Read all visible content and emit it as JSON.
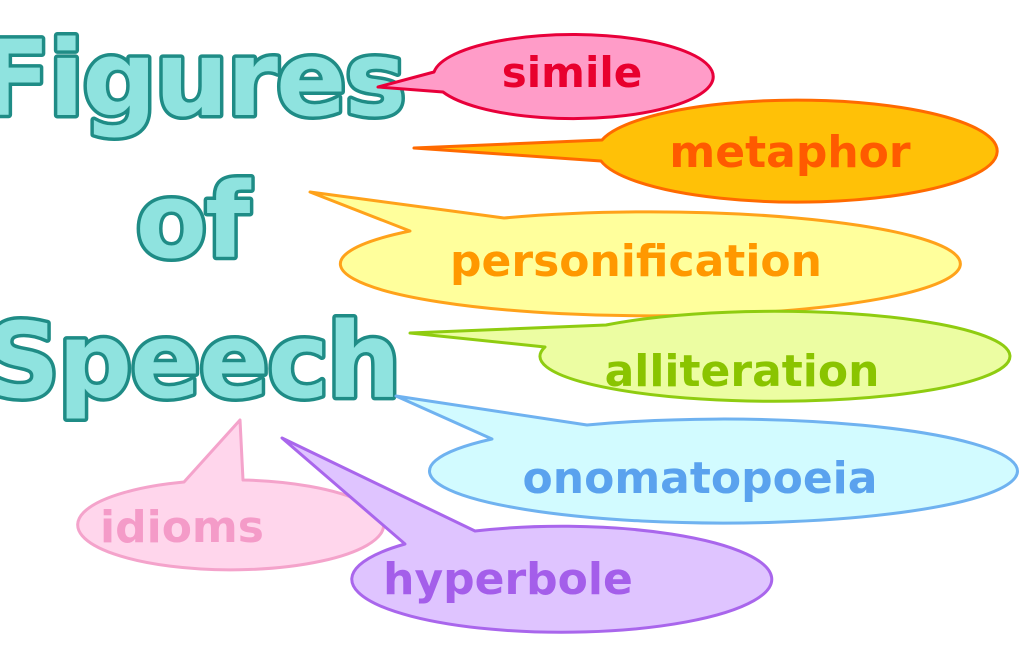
{
  "title": {
    "line1": "Figures",
    "line2": "of",
    "line3": "Speech",
    "fill_color": "#8fe3df",
    "outline_color": "#1f8c86"
  },
  "bubbles": [
    {
      "label": "simile",
      "fill": "#ff9cc8",
      "stroke": "#e8003a",
      "text_color": "#e8002e"
    },
    {
      "label": "metaphor",
      "fill": "#ffc107",
      "stroke": "#ff6a00",
      "text_color": "#ff5a00"
    },
    {
      "label": "personification",
      "fill": "#ffff9c",
      "stroke": "#ffa21a",
      "text_color": "#ff9800"
    },
    {
      "label": "alliteration",
      "fill": "#ecfda2",
      "stroke": "#8fcc10",
      "text_color": "#8ac400"
    },
    {
      "label": "onomatopoeia",
      "fill": "#d2fbff",
      "stroke": "#6fb2f0",
      "text_color": "#5aa2ee"
    },
    {
      "label": "idioms",
      "fill": "#ffd6ec",
      "stroke": "#f4a3cb",
      "text_color": "#f49bc8"
    },
    {
      "label": "hyperbole",
      "fill": "#dfc4ff",
      "stroke": "#a966ec",
      "text_color": "#a45eea"
    }
  ]
}
